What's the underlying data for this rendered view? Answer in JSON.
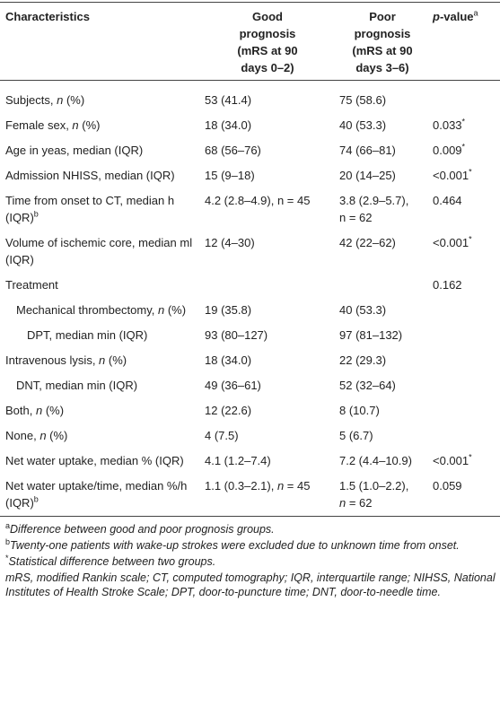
{
  "table": {
    "header": [
      [
        {
          "b": "Characteristics"
        }
      ],
      [
        {
          "b": "Good prognosis (mRS at 90 days 0–2)"
        }
      ],
      [
        {
          "b": "Poor prognosis (mRS at 90 days 3–6)"
        }
      ],
      [
        {
          "bi": "p"
        },
        {
          "b": "-value"
        },
        {
          "sup": "a"
        }
      ]
    ],
    "rows": [
      {
        "cells": [
          [
            "Subjects, ",
            {
              "i": "n"
            },
            " (%)"
          ],
          "53 (41.4)",
          "75 (58.6)",
          ""
        ]
      },
      {
        "cells": [
          [
            "Female sex, ",
            {
              "i": "n"
            },
            " (%)"
          ],
          "18 (34.0)",
          "40 (53.3)",
          [
            "0.033",
            {
              "sup": "*"
            }
          ]
        ]
      },
      {
        "cells": [
          "Age in yeas, median (IQR)",
          "68 (56–76)",
          "74 (66–81)",
          [
            "0.009",
            {
              "sup": "*"
            }
          ]
        ]
      },
      {
        "cells": [
          "Admission NHISS, median (IQR)",
          "15 (9–18)",
          "20 (14–25)",
          [
            "<0.001",
            {
              "sup": "*"
            }
          ]
        ]
      },
      {
        "cells": [
          [
            "Time from onset to CT, median h (IQR)",
            {
              "sup": "b"
            }
          ],
          "4.2 (2.8–4.9), n = 45",
          "3.8 (2.9–5.7), n = 62",
          "0.464"
        ]
      },
      {
        "cells": [
          "Volume of ischemic core, median ml (IQR)",
          "12 (4–30)",
          "42 (22–62)",
          [
            "<0.001",
            {
              "sup": "*"
            }
          ]
        ]
      },
      {
        "cells": [
          "Treatment",
          "",
          "",
          "0.162"
        ]
      },
      {
        "indent": 1,
        "cells": [
          [
            "Mechanical thrombectomy, ",
            {
              "i": "n"
            },
            " (%)"
          ],
          "19 (35.8)",
          "40 (53.3)",
          ""
        ]
      },
      {
        "indent": 2,
        "cells": [
          "DPT, median min (IQR)",
          "93 (80–127)",
          "97 (81–132)",
          ""
        ]
      },
      {
        "cells": [
          [
            "Intravenous lysis, ",
            {
              "i": "n"
            },
            " (%)"
          ],
          "18 (34.0)",
          "22 (29.3)",
          ""
        ]
      },
      {
        "indent": 1,
        "cells": [
          "DNT, median min (IQR)",
          "49 (36–61)",
          "52 (32–64)",
          ""
        ]
      },
      {
        "cells": [
          [
            "Both, ",
            {
              "i": "n"
            },
            " (%)"
          ],
          "12 (22.6)",
          "8 (10.7)",
          ""
        ]
      },
      {
        "cells": [
          [
            "None, ",
            {
              "i": "n"
            },
            " (%)"
          ],
          "4 (7.5)",
          "5 (6.7)",
          ""
        ]
      },
      {
        "cells": [
          "Net water uptake, median % (IQR)",
          "4.1 (1.2–7.4)",
          "7.2 (4.4–10.9)",
          [
            "<0.001",
            {
              "sup": "*"
            }
          ]
        ]
      },
      {
        "cells": [
          [
            "Net water uptake/time, median %/h (IQR)",
            {
              "sup": "b"
            }
          ],
          [
            "1.1 (0.3–2.1), ",
            {
              "i": "n"
            },
            " = 45"
          ],
          [
            "1.5 (1.0–2.2), ",
            {
              "i": "n"
            },
            " = 62"
          ],
          "0.059"
        ]
      }
    ]
  },
  "footnotes": [
    [
      {
        "sup": "a"
      },
      {
        "i": "Difference between good and poor prognosis groups."
      }
    ],
    [
      {
        "sup": "b"
      },
      {
        "i": "Twenty-one patients with wake-up strokes were excluded due to unknown time from onset."
      }
    ],
    [
      {
        "sup": "*"
      },
      {
        "i": "Statistical difference between two groups."
      }
    ],
    [
      {
        "i": "mRS, modified Rankin scale; CT, computed tomography; IQR, interquartile range; NIHSS, National Institutes of Health Stroke Scale; DPT, door-to-puncture time; DNT, door-to-needle time."
      }
    ]
  ]
}
